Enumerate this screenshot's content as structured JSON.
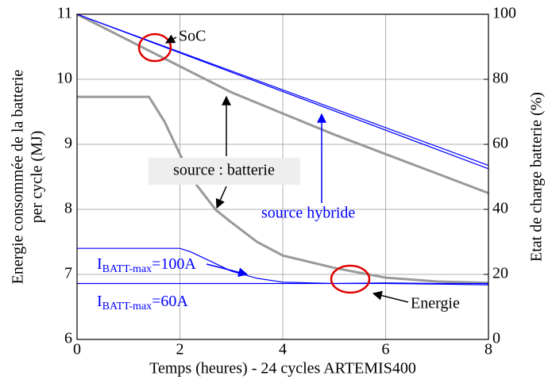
{
  "chart_data": {
    "type": "line",
    "xlabel": "Temps (heures) - 24 cycles ARTEMIS400",
    "ylabel": [
      "Energie consommée de la batterie",
      "per cycle (MJ)"
    ],
    "y2label": "Etat de charge batterie (%)",
    "xlim": [
      0,
      8
    ],
    "xticks": [
      0,
      2,
      4,
      6,
      8
    ],
    "ylim": [
      6,
      11
    ],
    "yticks": [
      6,
      7,
      8,
      9,
      10,
      11
    ],
    "y2lim": [
      0,
      100
    ],
    "y2ticks": [
      0,
      20,
      40,
      60,
      80,
      100
    ],
    "grid": true,
    "series": [
      {
        "color": "#999999",
        "x": [
          0,
          1.4,
          1.7,
          2,
          2.3,
          2.7,
          3,
          3.5,
          4,
          5,
          6,
          7,
          8
        ],
        "values": [
          9.73,
          9.73,
          9.35,
          8.85,
          8.4,
          7.99,
          7.8,
          7.5,
          7.29,
          7.1,
          6.95,
          6.89,
          6.87
        ]
      },
      {
        "color": "#999999",
        "axis": "y2",
        "x": [
          0,
          1,
          2,
          3,
          4,
          5,
          6,
          7,
          8
        ],
        "values": [
          100,
          92,
          84,
          76,
          69.5,
          63,
          57,
          51,
          45
        ]
      },
      {
        "color": "#0000ff",
        "axis": "y2",
        "x": [
          0,
          8
        ],
        "values": [
          100,
          53.5
        ]
      },
      {
        "color": "#0000ff",
        "axis": "y2",
        "x": [
          0,
          8
        ],
        "values": [
          100,
          52.5
        ]
      },
      {
        "color": "#0000ff",
        "x": [
          0,
          2,
          2.2,
          2.6,
          3,
          3.5,
          4,
          5,
          6,
          7,
          8
        ],
        "values": [
          7.4,
          7.4,
          7.35,
          7.2,
          7.05,
          6.94,
          6.88,
          6.86,
          6.86,
          6.85,
          6.84
        ]
      },
      {
        "color": "#0000ff",
        "x": [
          0,
          2,
          4,
          5,
          6,
          7,
          8
        ],
        "values": [
          6.86,
          6.86,
          6.86,
          6.86,
          6.87,
          6.86,
          6.86
        ]
      }
    ],
    "annotations": {
      "soc": "SoC",
      "battery": "source : batterie",
      "hybrid": "source hybride",
      "i100": {
        "main": "I",
        "sub": "BATT-max",
        "tail": "=100A"
      },
      "i60": {
        "main": "I",
        "sub": "BATT-max",
        "tail": "=60A"
      },
      "energy": "Energie"
    }
  }
}
